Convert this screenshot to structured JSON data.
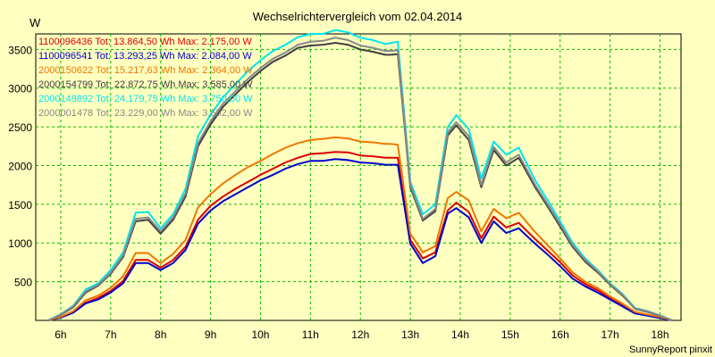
{
  "chart_data": {
    "type": "line",
    "title": "Wechselrichtervergleich vom 02.04.2014",
    "ylabel": "W",
    "xlabel": "",
    "footer": "SunnyReport pinxit",
    "xlim": [
      5.5,
      18.42
    ],
    "ylim": [
      0,
      3700
    ],
    "yticks": [
      500,
      1000,
      1500,
      2000,
      2500,
      3000,
      3500
    ],
    "xticks": [
      {
        "v": 6,
        "label": "6h"
      },
      {
        "v": 7,
        "label": "7h"
      },
      {
        "v": 8,
        "label": "8h"
      },
      {
        "v": 9,
        "label": "9h"
      },
      {
        "v": 10,
        "label": "10h"
      },
      {
        "v": 11,
        "label": "11h"
      },
      {
        "v": 12,
        "label": "12h"
      },
      {
        "v": 13,
        "label": "13h"
      },
      {
        "v": 14,
        "label": "14h"
      },
      {
        "v": 15,
        "label": "15h"
      },
      {
        "v": 16,
        "label": "16h"
      },
      {
        "v": 17,
        "label": "17h"
      },
      {
        "v": 18,
        "label": "18h"
      }
    ],
    "grid": true,
    "legend_position": "top-left",
    "x": [
      5.75,
      6.0,
      6.25,
      6.5,
      6.75,
      7.0,
      7.25,
      7.5,
      7.75,
      8.0,
      8.25,
      8.5,
      8.75,
      9.0,
      9.25,
      9.5,
      9.75,
      10.0,
      10.25,
      10.5,
      10.75,
      11.0,
      11.25,
      11.5,
      11.75,
      12.0,
      12.25,
      12.5,
      12.6,
      12.75,
      13.0,
      13.25,
      13.5,
      13.75,
      13.92,
      14.17,
      14.42,
      14.67,
      14.92,
      15.17,
      15.5,
      15.75,
      16.0,
      16.25,
      16.5,
      16.75,
      17.0,
      17.25,
      17.5,
      17.75,
      18.0,
      18.25
    ],
    "series": [
      {
        "name": "1100096436",
        "legend": "1100096436 Tot: 13.864,50 Wh Max: 2.175,00 W",
        "color": "#dd0000",
        "values": [
          0,
          40,
          110,
          230,
          290,
          380,
          510,
          780,
          780,
          680,
          780,
          950,
          1300,
          1480,
          1600,
          1700,
          1790,
          1880,
          1960,
          2040,
          2100,
          2150,
          2160,
          2175,
          2170,
          2130,
          2120,
          2100,
          2100,
          2100,
          1040,
          800,
          880,
          1420,
          1520,
          1400,
          1060,
          1340,
          1200,
          1260,
          1050,
          900,
          750,
          580,
          470,
          390,
          290,
          200,
          100,
          70,
          40,
          0
        ]
      },
      {
        "name": "1100096541",
        "legend": "1100096541 Tot: 13.293,25 Wh Max: 2.084,00 W",
        "color": "#0000cc",
        "values": [
          0,
          35,
          100,
          220,
          270,
          360,
          480,
          740,
          740,
          650,
          740,
          910,
          1250,
          1420,
          1540,
          1630,
          1720,
          1810,
          1880,
          1960,
          2020,
          2060,
          2060,
          2084,
          2070,
          2040,
          2030,
          2010,
          2010,
          2010,
          990,
          740,
          830,
          1380,
          1450,
          1330,
          1000,
          1280,
          1130,
          1190,
          990,
          850,
          700,
          540,
          440,
          360,
          270,
          180,
          90,
          60,
          30,
          0
        ]
      },
      {
        "name": "2000150622",
        "legend": "2000150622 Tot: 15.217,63 Wh Max: 2.364,00 W",
        "color": "#ee7700",
        "values": [
          0,
          45,
          120,
          260,
          320,
          420,
          570,
          870,
          870,
          740,
          860,
          1040,
          1460,
          1630,
          1770,
          1880,
          1980,
          2060,
          2150,
          2230,
          2290,
          2330,
          2345,
          2364,
          2350,
          2310,
          2300,
          2280,
          2280,
          2270,
          1120,
          880,
          960,
          1580,
          1660,
          1550,
          1150,
          1440,
          1320,
          1390,
          1140,
          970,
          800,
          620,
          500,
          420,
          310,
          215,
          110,
          75,
          45,
          0
        ]
      },
      {
        "name": "2000154799",
        "legend": "2000154799 Tot: 22.872,75 Wh Max: 3.585,00 W",
        "color": "#404040",
        "values": [
          0,
          70,
          170,
          360,
          450,
          600,
          820,
          1280,
          1300,
          1120,
          1300,
          1600,
          2250,
          2530,
          2760,
          2920,
          3080,
          3220,
          3340,
          3420,
          3520,
          3550,
          3560,
          3585,
          3560,
          3500,
          3470,
          3430,
          3430,
          3440,
          1720,
          1290,
          1410,
          2390,
          2520,
          2330,
          1720,
          2200,
          2000,
          2100,
          1720,
          1470,
          1210,
          950,
          760,
          620,
          460,
          320,
          150,
          110,
          60,
          0
        ]
      },
      {
        "name": "2000149892",
        "legend": "2000149892 Tot: 24.179,75 Wh Max: 3.750,00 W",
        "color": "#00e5ee",
        "values": [
          0,
          80,
          190,
          400,
          480,
          650,
          880,
          1390,
          1400,
          1190,
          1370,
          1700,
          2380,
          2660,
          2880,
          3050,
          3220,
          3360,
          3480,
          3560,
          3660,
          3700,
          3700,
          3750,
          3720,
          3650,
          3620,
          3570,
          3580,
          3600,
          1790,
          1370,
          1500,
          2500,
          2650,
          2470,
          1830,
          2310,
          2140,
          2230,
          1810,
          1550,
          1280,
          1000,
          800,
          650,
          480,
          340,
          160,
          120,
          65,
          0
        ]
      },
      {
        "name": "2000001478",
        "legend": "2000001478 Tot: 23.229,00 Wh Max: 3.652,00 W",
        "color": "#888888",
        "values": [
          0,
          75,
          180,
          375,
          460,
          615,
          840,
          1310,
          1330,
          1150,
          1330,
          1640,
          2290,
          2570,
          2800,
          2960,
          3120,
          3260,
          3380,
          3460,
          3560,
          3600,
          3610,
          3652,
          3620,
          3550,
          3520,
          3480,
          3480,
          3490,
          1750,
          1310,
          1440,
          2430,
          2560,
          2380,
          1750,
          2240,
          2040,
          2140,
          1750,
          1500,
          1240,
          970,
          780,
          635,
          470,
          330,
          155,
          115,
          62,
          0
        ]
      }
    ]
  }
}
